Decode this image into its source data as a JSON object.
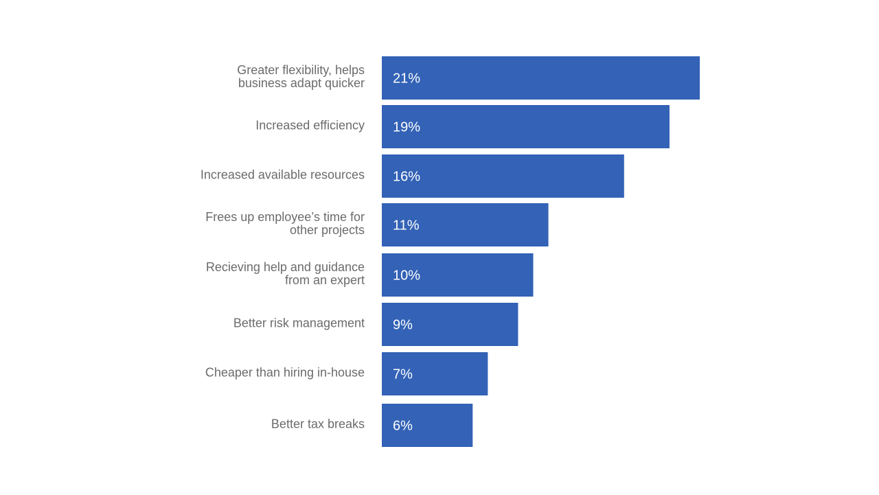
{
  "chart_data": {
    "type": "bar",
    "orientation": "horizontal",
    "categories": [
      [
        "Greater flexibility, helps",
        "business adapt quicker"
      ],
      [
        "Increased efficiency"
      ],
      [
        "Increased available resources"
      ],
      [
        "Frees up employee’s time for",
        "other projects"
      ],
      [
        "Recieving help and guidance",
        "from an expert"
      ],
      [
        "Better risk management"
      ],
      [
        "Cheaper than hiring in-house"
      ],
      [
        "Better tax breaks"
      ]
    ],
    "values": [
      21,
      19,
      16,
      11,
      10,
      9,
      7,
      6
    ],
    "value_labels": [
      "21%",
      "19%",
      "16%",
      "11%",
      "10%",
      "9%",
      "7%",
      "6%"
    ],
    "unit": "%",
    "title": "",
    "xlabel": "",
    "ylabel": "",
    "grid": false,
    "legend": "none",
    "bar_color": "#3362b6",
    "label_color": "#6b6b6b",
    "value_label_color": "#ffffff"
  }
}
